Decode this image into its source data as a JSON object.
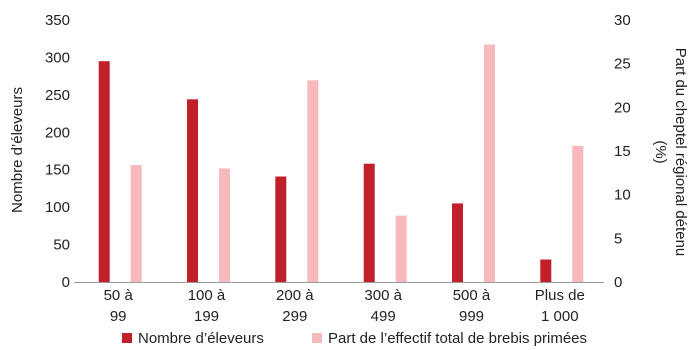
{
  "chart_data": {
    "type": "bar",
    "categories": [
      [
        "50 à",
        "99"
      ],
      [
        "100 à",
        "199"
      ],
      [
        "200 à",
        "299"
      ],
      [
        "300 à",
        "499"
      ],
      [
        "500 à",
        "999"
      ],
      [
        "Plus de",
        "1 000"
      ]
    ],
    "series": [
      {
        "name": "Nombre d’éleveurs",
        "axis": "left",
        "color": "#c0202a",
        "values": [
          295,
          244,
          141,
          158,
          105,
          30
        ]
      },
      {
        "name": "Part de l’effectif total de brebis primées",
        "axis": "right",
        "color": "#f7b9bb",
        "values": [
          13.4,
          13.0,
          23.1,
          7.6,
          27.2,
          15.6
        ]
      }
    ],
    "y_left": {
      "label": "Nombre d’éleveurs",
      "ylim": [
        0,
        350
      ],
      "ticks": [
        "0",
        "50",
        "100",
        "150",
        "200",
        "250",
        "300",
        "350"
      ]
    },
    "y_right": {
      "label_lines": [
        "Part du cheptel régional détenu",
        "(%)"
      ],
      "ylim": [
        0,
        30
      ],
      "ticks": [
        "0",
        "5",
        "10",
        "15",
        "20",
        "25",
        "30"
      ]
    },
    "grid": false,
    "legend_position": "bottom"
  }
}
